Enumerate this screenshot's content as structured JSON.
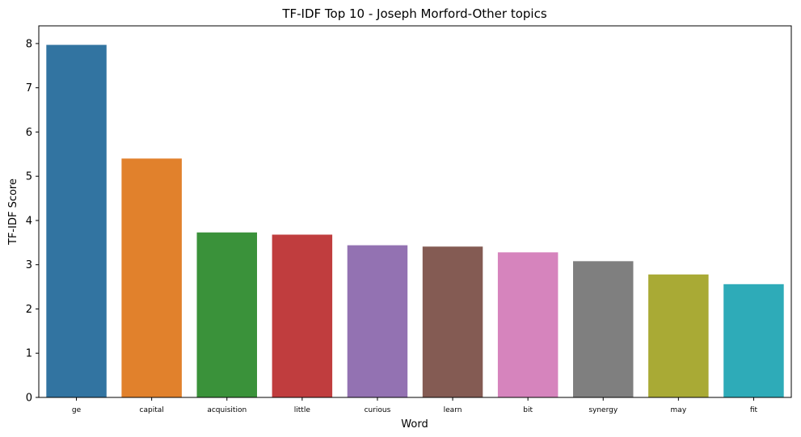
{
  "chart_data": {
    "type": "bar",
    "title": "TF-IDF Top 10 - Joseph Morford-Other topics",
    "xlabel": "Word",
    "ylabel": "TF-IDF Score",
    "categories": [
      "ge",
      "capital",
      "acquisition",
      "little",
      "curious",
      "learn",
      "bit",
      "synergy",
      "may",
      "fit"
    ],
    "values": [
      7.97,
      5.4,
      3.73,
      3.68,
      3.44,
      3.41,
      3.28,
      3.08,
      2.78,
      2.56
    ],
    "colors": [
      "#3274a1",
      "#e1812c",
      "#3a923a",
      "#c03d3e",
      "#9372b2",
      "#845b53",
      "#d684bd",
      "#7f7f7f",
      "#a9aa35",
      "#2eabb8"
    ],
    "ylim": [
      0,
      8.4
    ],
    "yticks": [
      0,
      1,
      2,
      3,
      4,
      5,
      6,
      7,
      8
    ],
    "grid": false,
    "legend": "none"
  }
}
